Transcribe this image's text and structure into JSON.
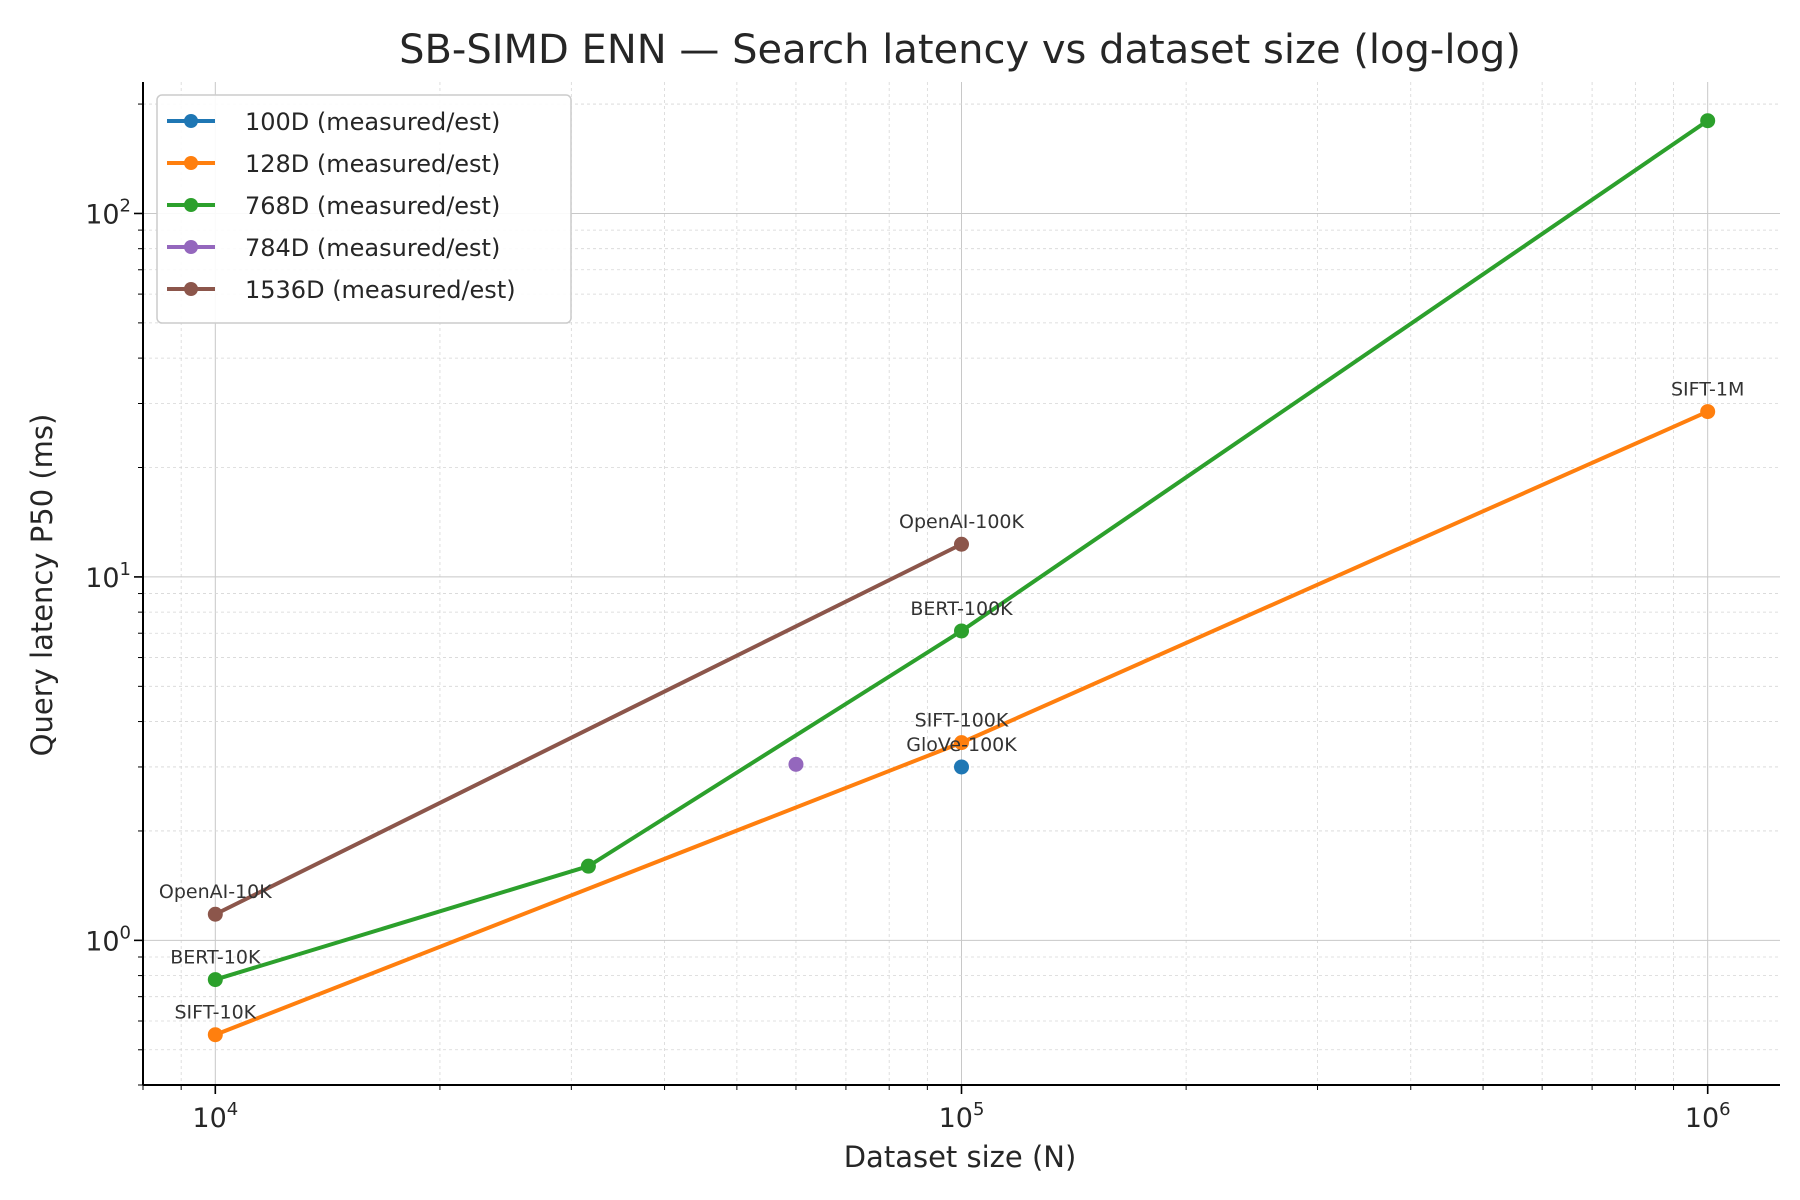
{
  "chart_data": {
    "type": "line",
    "title": "SB-SIMD ENN — Search latency vs dataset size (log-log)",
    "xlabel": "Dataset size (N)",
    "ylabel": "Query latency P50 (ms)",
    "xscale": "log",
    "yscale": "log",
    "xlim": [
      8000,
      1250000
    ],
    "ylim": [
      0.4,
      230
    ],
    "grid": true,
    "legend_position": "top-left",
    "x_ticks": [
      {
        "value": 10000,
        "base": "10",
        "exp": "4"
      },
      {
        "value": 100000,
        "base": "10",
        "exp": "5"
      },
      {
        "value": 1000000,
        "base": "10",
        "exp": "6"
      }
    ],
    "y_ticks": [
      {
        "value": 1,
        "base": "10",
        "exp": "0"
      },
      {
        "value": 10,
        "base": "10",
        "exp": "1"
      },
      {
        "value": 100,
        "base": "10",
        "exp": "2"
      }
    ],
    "series": [
      {
        "name": "100D (measured/est)",
        "color": "#1f77b4",
        "points": [
          {
            "x": 100000,
            "y": 3.0,
            "label": "GloVe-100K"
          }
        ]
      },
      {
        "name": "128D (measured/est)",
        "color": "#ff7f0e",
        "points": [
          {
            "x": 10000,
            "y": 0.55,
            "label": "SIFT-10K"
          },
          {
            "x": 100000,
            "y": 3.5,
            "label": "SIFT-100K"
          },
          {
            "x": 1000000,
            "y": 28.5,
            "label": "SIFT-1M"
          }
        ]
      },
      {
        "name": "768D (measured/est)",
        "color": "#2ca02c",
        "points": [
          {
            "x": 10000,
            "y": 0.78,
            "label": "BERT-10K"
          },
          {
            "x": 31623,
            "y": 1.6,
            "label": ""
          },
          {
            "x": 100000,
            "y": 7.1,
            "label": "BERT-100K"
          },
          {
            "x": 1000000,
            "y": 180,
            "label": ""
          }
        ]
      },
      {
        "name": "784D (measured/est)",
        "color": "#9467bd",
        "points": [
          {
            "x": 60000,
            "y": 3.05,
            "label": ""
          }
        ]
      },
      {
        "name": "1536D (measured/est)",
        "color": "#8c564b",
        "points": [
          {
            "x": 10000,
            "y": 1.18,
            "label": "OpenAI-10K"
          },
          {
            "x": 100000,
            "y": 12.3,
            "label": "OpenAI-100K"
          }
        ]
      }
    ]
  }
}
